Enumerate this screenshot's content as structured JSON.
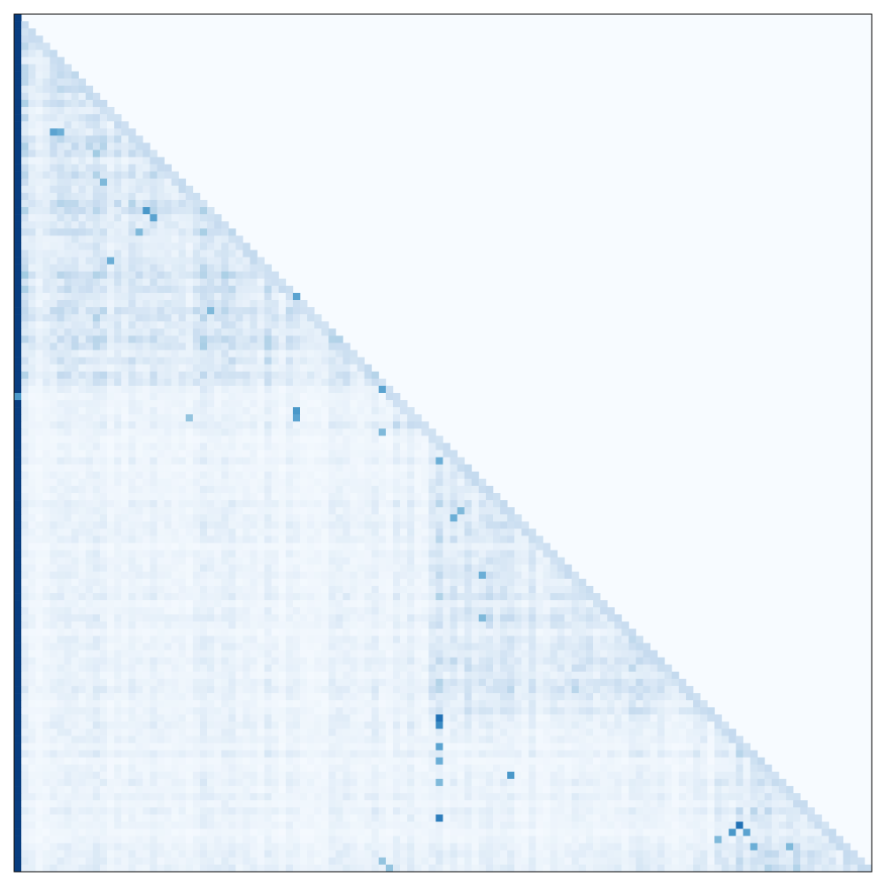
{
  "chart_data": {
    "type": "heatmap",
    "title": "",
    "xlabel": "",
    "ylabel": "",
    "colormap": "Blues",
    "color_low": "#f7fbff",
    "color_high": "#08306b",
    "value_range": [
      0,
      1
    ],
    "matrix_size": 120,
    "triangle": "lower",
    "axis_ticks": false,
    "grid": false,
    "legend": "none",
    "diagonal_band_value": 0.18,
    "upper_triangle_value": 0.0,
    "first_column_value": 0.95,
    "background_level": 0.06,
    "clusters": [
      {
        "start": 0,
        "end": 52,
        "level": 0.14
      },
      {
        "start": 52,
        "end": 58,
        "level": 0.1
      },
      {
        "start": 58,
        "end": 98,
        "level": 0.12
      },
      {
        "start": 98,
        "end": 120,
        "level": 0.11
      }
    ],
    "hotspots": [
      {
        "row": 16,
        "col": 5,
        "value": 0.55
      },
      {
        "row": 16,
        "col": 6,
        "value": 0.5
      },
      {
        "row": 23,
        "col": 12,
        "value": 0.45
      },
      {
        "row": 27,
        "col": 18,
        "value": 0.6
      },
      {
        "row": 28,
        "col": 19,
        "value": 0.55
      },
      {
        "row": 30,
        "col": 17,
        "value": 0.45
      },
      {
        "row": 34,
        "col": 13,
        "value": 0.5
      },
      {
        "row": 39,
        "col": 39,
        "value": 0.55
      },
      {
        "row": 41,
        "col": 27,
        "value": 0.45
      },
      {
        "row": 52,
        "col": 51,
        "value": 0.55
      },
      {
        "row": 53,
        "col": 0,
        "value": 0.6
      },
      {
        "row": 55,
        "col": 39,
        "value": 0.6
      },
      {
        "row": 56,
        "col": 39,
        "value": 0.55
      },
      {
        "row": 56,
        "col": 24,
        "value": 0.4
      },
      {
        "row": 58,
        "col": 51,
        "value": 0.45
      },
      {
        "row": 62,
        "col": 59,
        "value": 0.5
      },
      {
        "row": 69,
        "col": 62,
        "value": 0.45
      },
      {
        "row": 70,
        "col": 61,
        "value": 0.5
      },
      {
        "row": 78,
        "col": 65,
        "value": 0.5
      },
      {
        "row": 84,
        "col": 65,
        "value": 0.45
      },
      {
        "row": 98,
        "col": 59,
        "value": 0.75
      },
      {
        "row": 99,
        "col": 59,
        "value": 0.65
      },
      {
        "row": 102,
        "col": 59,
        "value": 0.55
      },
      {
        "row": 104,
        "col": 59,
        "value": 0.5
      },
      {
        "row": 106,
        "col": 69,
        "value": 0.6
      },
      {
        "row": 107,
        "col": 59,
        "value": 0.45
      },
      {
        "row": 112,
        "col": 59,
        "value": 0.7
      },
      {
        "row": 113,
        "col": 101,
        "value": 0.75
      },
      {
        "row": 114,
        "col": 100,
        "value": 0.6
      },
      {
        "row": 114,
        "col": 102,
        "value": 0.55
      },
      {
        "row": 116,
        "col": 103,
        "value": 0.5
      },
      {
        "row": 115,
        "col": 98,
        "value": 0.45
      },
      {
        "row": 116,
        "col": 108,
        "value": 0.45
      },
      {
        "row": 118,
        "col": 51,
        "value": 0.4
      },
      {
        "row": 119,
        "col": 52,
        "value": 0.4
      }
    ]
  }
}
